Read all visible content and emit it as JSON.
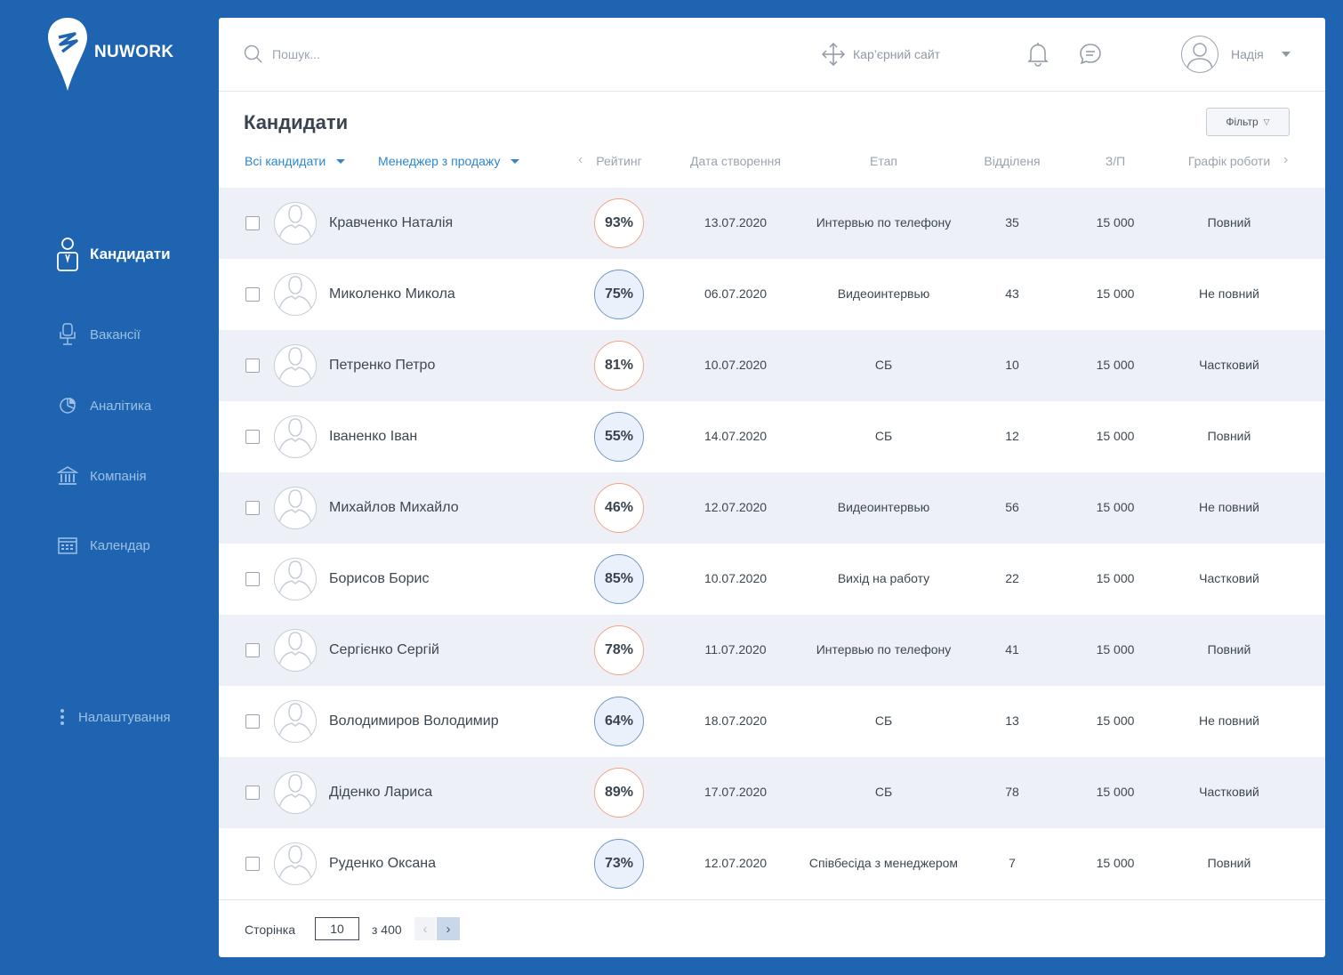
{
  "brand": {
    "name": "NUWORK"
  },
  "sidebar": {
    "items": [
      {
        "label": "Кандидати",
        "icon": "candidate-icon",
        "active": true
      },
      {
        "label": "Вакансії",
        "icon": "chair-icon"
      },
      {
        "label": "Аналітика",
        "icon": "pie-chart-icon"
      },
      {
        "label": "Компанія",
        "icon": "building-icon"
      },
      {
        "label": "Календар",
        "icon": "calendar-icon"
      }
    ],
    "settings_label": "Налаштування"
  },
  "topbar": {
    "search_placeholder": "Пошук...",
    "career_label": "Кар’єрний сайт",
    "user_name": "Надія"
  },
  "page": {
    "title": "Кандидати",
    "filter_label": "Фільтр",
    "filter_all": "Всі кандидати",
    "filter_manager": "Менеджер з продажу"
  },
  "columns": {
    "rating": "Рейтинг",
    "created": "Дата створення",
    "stage": "Етап",
    "dept": "Відділеня",
    "salary": "З/П",
    "schedule": "Графік роботи"
  },
  "rows": [
    {
      "name": "Кравченко Наталія",
      "rating": "93%",
      "date": "13.07.2020",
      "stage": "Интервью по телефону",
      "dept": "35",
      "salary": "15 000",
      "schedule": "Повний"
    },
    {
      "name": "Миколенко Микола",
      "rating": "75%",
      "date": "06.07.2020",
      "stage": "Видеоинтервью",
      "dept": "43",
      "salary": "15 000",
      "schedule": "Не повний"
    },
    {
      "name": "Петренко Петро",
      "rating": "81%",
      "date": "10.07.2020",
      "stage": "СБ",
      "dept": "10",
      "salary": "15 000",
      "schedule": "Частковий"
    },
    {
      "name": "Іваненко Іван",
      "rating": "55%",
      "date": "14.07.2020",
      "stage": "СБ",
      "dept": "12",
      "salary": "15 000",
      "schedule": "Повний"
    },
    {
      "name": "Михайлов Михайло",
      "rating": "46%",
      "date": "12.07.2020",
      "stage": "Видеоинтервью",
      "dept": "56",
      "salary": "15 000",
      "schedule": "Не повний"
    },
    {
      "name": "Борисов Борис",
      "rating": "85%",
      "date": "10.07.2020",
      "stage": "Вихід на работу",
      "dept": "22",
      "salary": "15 000",
      "schedule": "Частковий"
    },
    {
      "name": "Сергієнко Сергій",
      "rating": "78%",
      "date": "11.07.2020",
      "stage": "Интервью по телефону",
      "dept": "41",
      "salary": "15 000",
      "schedule": "Повний"
    },
    {
      "name": "Володимиров Володимир",
      "rating": "64%",
      "date": "18.07.2020",
      "stage": "СБ",
      "dept": "13",
      "salary": "15 000",
      "schedule": "Не повний"
    },
    {
      "name": "Діденко Лариса",
      "rating": "89%",
      "date": "17.07.2020",
      "stage": "СБ",
      "dept": "78",
      "salary": "15 000",
      "schedule": "Частковий"
    },
    {
      "name": "Руденко Оксана",
      "rating": "73%",
      "date": "12.07.2020",
      "stage": "Співбесіда з менеджером",
      "dept": "7",
      "salary": "15 000",
      "schedule": "Повний"
    }
  ],
  "pagination": {
    "label": "Сторінка",
    "current": "10",
    "of_label": "з 400"
  },
  "colors": {
    "background": "#1e64b0",
    "accent": "#2c87d2",
    "rating_high_border": "#f0a58a",
    "rating_low_border": "#6f98cc",
    "row_shade": "#edf0f7"
  }
}
